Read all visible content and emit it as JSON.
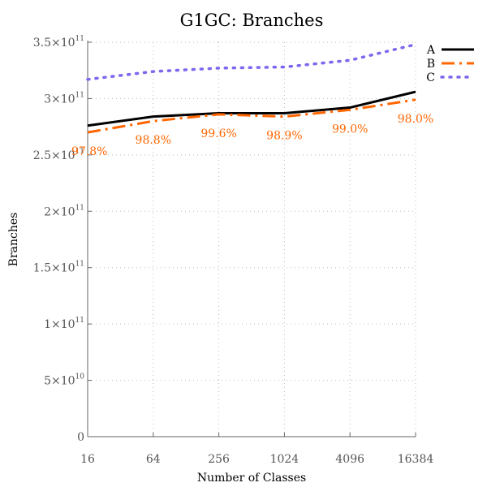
{
  "chart_data": {
    "type": "line",
    "title": "G1GC: Branches",
    "xlabel": "Number of Classes",
    "ylabel": "Branches",
    "x_scale": "log2",
    "x": [
      16,
      64,
      256,
      1024,
      4096,
      16384
    ],
    "x_tick_labels": [
      "16",
      "64",
      "256",
      "1024",
      "4096",
      "16384"
    ],
    "ylim": [
      0,
      350000000000
    ],
    "y_ticks": [
      {
        "value": 0,
        "mantissa": "0",
        "exponent": ""
      },
      {
        "value": 50000000000,
        "mantissa": "5×10",
        "exponent": "10"
      },
      {
        "value": 100000000000,
        "mantissa": "1×10",
        "exponent": "11"
      },
      {
        "value": 150000000000,
        "mantissa": "1.5×10",
        "exponent": "11"
      },
      {
        "value": 200000000000,
        "mantissa": "2×10",
        "exponent": "11"
      },
      {
        "value": 250000000000,
        "mantissa": "2.5×10",
        "exponent": "11"
      },
      {
        "value": 300000000000,
        "mantissa": "3×10",
        "exponent": "11"
      },
      {
        "value": 350000000000,
        "mantissa": "3.5×10",
        "exponent": "11"
      }
    ],
    "grid": true,
    "legend_position": "top-right",
    "series": [
      {
        "name": "A",
        "values": [
          276000000000,
          284000000000,
          287000000000,
          287000000000,
          292000000000,
          306000000000
        ],
        "color": "#000000",
        "style": "solid"
      },
      {
        "name": "B",
        "values": [
          270000000000,
          280000000000,
          286000000000,
          284000000000,
          290000000000,
          299000000000
        ],
        "color": "#ff6600",
        "style": "dash-dot"
      },
      {
        "name": "C",
        "values": [
          317000000000,
          324000000000,
          327000000000,
          328000000000,
          334000000000,
          348000000000
        ],
        "color": "#7b68ee",
        "style": "dotted"
      }
    ],
    "annotations": [
      "97.8%",
      "98.8%",
      "99.6%",
      "98.9%",
      "99.0%",
      "98.0%"
    ],
    "annotation_color": "#ff6600"
  }
}
